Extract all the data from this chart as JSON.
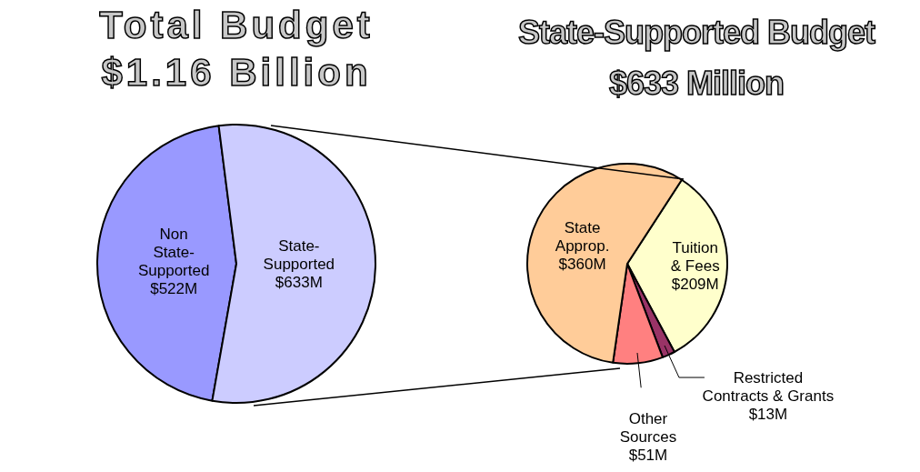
{
  "chart_data": [
    {
      "type": "pie",
      "title": "Total Budget",
      "subtitle": "$1.16 Billion",
      "categories": [
        "Non\nState-\nSupported",
        "State-\nSupported"
      ],
      "values": [
        522,
        633
      ],
      "value_labels": [
        "$522M",
        "$633M"
      ],
      "colors": [
        "#9999ff",
        "#ccccff"
      ],
      "legend": false
    },
    {
      "type": "pie",
      "title": "State-Supported Budget",
      "subtitle": "$633 Million",
      "categories": [
        "Tuition\n& Fees",
        "Restricted\nContracts & Grants",
        "Other\nSources",
        "State\nApprop."
      ],
      "values": [
        209,
        13,
        51,
        360
      ],
      "value_labels": [
        "$209M",
        "$13M",
        "$51M",
        "$360M"
      ],
      "colors": [
        "#ffffcc",
        "#993366",
        "#ff8080",
        "#ffcc99"
      ],
      "legend": false
    }
  ]
}
